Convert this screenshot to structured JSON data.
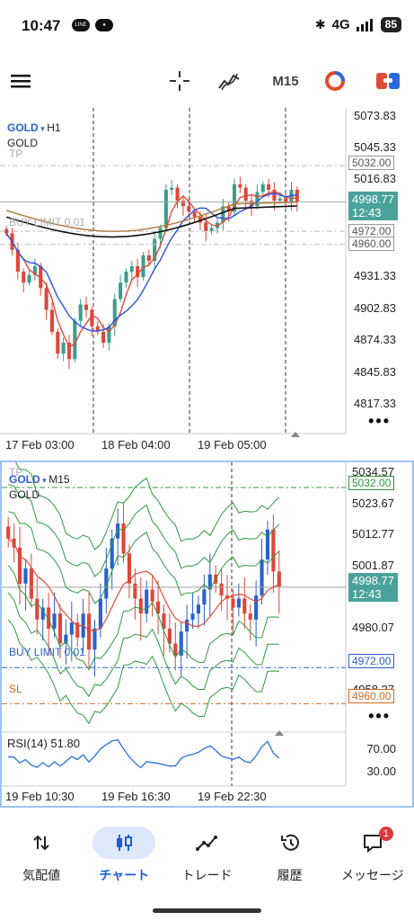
{
  "status_bar": {
    "time": "10:47",
    "left_icons": [
      "line-icon",
      "app-icon"
    ],
    "network": "4G",
    "battery": "85"
  },
  "toolbar": {
    "icons": [
      "menu-icon",
      "crosshair-icon",
      "indicator-icon",
      "trade-icon",
      "order-icon"
    ],
    "timeframe": "M15"
  },
  "top_chart": {
    "symbol": "GOLD",
    "timeframe": "H1",
    "name": "GOLD",
    "tp_label": "TP",
    "buy_limit_label": "BUY LIMIT 0.01",
    "price_labels": [
      "5073.83",
      "5045.33",
      "5016.83",
      "4931.33",
      "4902.83",
      "4874.33",
      "4845.83",
      "4817.33"
    ],
    "tags": {
      "tp": "5032.00",
      "current": "4998.77",
      "countdown": "12:43",
      "buy_limit": "4972.00",
      "sl": "4960.00"
    },
    "time_labels": [
      "17 Feb 03:00",
      "18 Feb 04:00",
      "19 Feb 05:00"
    ]
  },
  "bottom_chart": {
    "symbol": "GOLD",
    "timeframe": "M15",
    "name": "GOLD",
    "tp_label": "TP",
    "buy_limit_label": "BUY LIMIT 0.01",
    "sl_label": "SL",
    "price_labels": [
      "5034.57",
      "5023.67",
      "5012.77",
      "5001.87",
      "4990.97",
      "4980.07",
      "4969.17",
      "4958.27"
    ],
    "tags": {
      "tp": "5032.00",
      "current": "4998.77",
      "countdown": "12:43",
      "buy_limit": "4972.00",
      "sl": "4960.00"
    },
    "rsi_label": "RSI(14) 51.80",
    "rsi_levels": [
      "70.00",
      "30.00"
    ],
    "time_labels": [
      "19 Feb 10:30",
      "19 Feb 16:30",
      "19 Feb 22:30"
    ]
  },
  "chart_data": [
    {
      "type": "candlestick",
      "title": "GOLD, H1",
      "ylim": [
        4800,
        5080
      ],
      "x_tick_labels": [
        "17 Feb 03:00",
        "18 Feb 04:00",
        "19 Feb 05:00"
      ],
      "levels": {
        "tp": 5032.0,
        "buy_limit": 4972.0,
        "sl": 4960.0,
        "current": 4998.77
      },
      "close": [
        4970,
        4955,
        4935,
        4925,
        4932,
        4940,
        4920,
        4900,
        4880,
        4860,
        4870,
        4855,
        4890,
        4905,
        4900,
        4885,
        4880,
        4870,
        4885,
        4910,
        4925,
        4935,
        4940,
        4930,
        4950,
        4945,
        4965,
        4975,
        5010,
        5012,
        5000,
        4995,
        4990,
        4985,
        4980,
        4972,
        4975,
        4980,
        4995,
        4990,
        5015,
        5012,
        5000,
        4995,
        5008,
        5015,
        5010,
        5000,
        5002,
        4998,
        5010,
        4999
      ]
    },
    {
      "type": "candlestick",
      "title": "GOLD, M15",
      "ylim": [
        4955,
        5038
      ],
      "x_tick_labels": [
        "19 Feb 10:30",
        "19 Feb 16:30",
        "19 Feb 22:30"
      ],
      "levels": {
        "tp": 5032.0,
        "buy_limit": 4972.0,
        "sl": 4960.0,
        "current": 4998.77
      },
      "close": [
        5015,
        5012,
        5000,
        5005,
        4995,
        4988,
        4992,
        4985,
        4990,
        4980,
        4983,
        4987,
        4982,
        4990,
        4978,
        4985,
        4995,
        5005,
        5015,
        5020,
        5010,
        5000,
        4995,
        4990,
        4998,
        4994,
        4990,
        4985,
        4980,
        4976,
        4984,
        4988,
        4990,
        4993,
        4998,
        5003,
        5000,
        4996,
        4995,
        4992,
        4995,
        4990,
        4988,
        4996,
        5008,
        5018,
        5004,
        4999
      ],
      "rsi": {
        "name": "RSI(14)",
        "value": 51.8,
        "levels": [
          70,
          30
        ]
      }
    }
  ]
}
